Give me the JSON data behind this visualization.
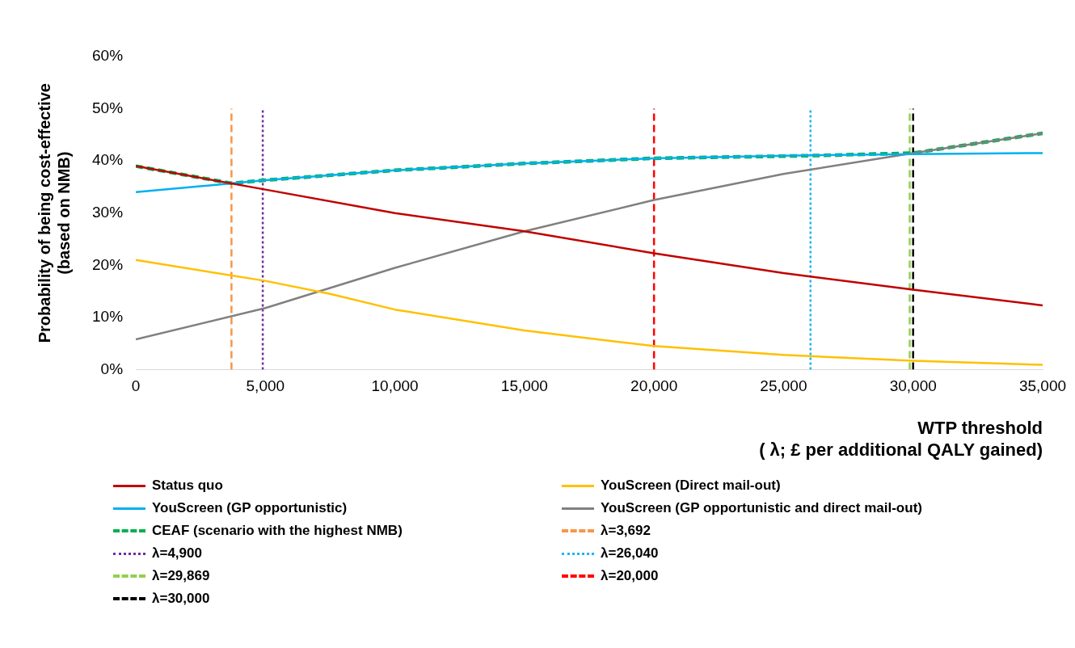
{
  "chart_data": {
    "type": "line",
    "xlabel": "WTP threshold\n( λ; £ per additional QALY gained)",
    "ylabel": "Probability of being cost-effective\n(based on NMB)",
    "xlim": [
      0,
      35000
    ],
    "xticks": [
      {
        "value": 0,
        "label": "0"
      },
      {
        "value": 5000,
        "label": "5,000"
      },
      {
        "value": 10000,
        "label": "10,000"
      },
      {
        "value": 15000,
        "label": "15,000"
      },
      {
        "value": 20000,
        "label": "20,000"
      },
      {
        "value": 25000,
        "label": "25,000"
      },
      {
        "value": 30000,
        "label": "30,000"
      },
      {
        "value": 35000,
        "label": "35,000"
      }
    ],
    "ylim": [
      0,
      60
    ],
    "yticks": [
      {
        "value": 0,
        "label": "0%"
      },
      {
        "value": 10,
        "label": "10%"
      },
      {
        "value": 20,
        "label": "20%"
      },
      {
        "value": 30,
        "label": "30%"
      },
      {
        "value": 40,
        "label": "40%"
      },
      {
        "value": 50,
        "label": "50%"
      },
      {
        "value": 60,
        "label": "60%"
      }
    ],
    "grid": false,
    "legend": "bottom",
    "marker": "none",
    "series": [
      {
        "name": "Status quo",
        "color": "#c00000",
        "line_style": "solid",
        "x": [
          0,
          5000,
          10000,
          15000,
          20000,
          25000,
          30000,
          35000
        ],
        "values": [
          39,
          34.5,
          30,
          26.5,
          22.3,
          18.5,
          15.3,
          12.3
        ]
      },
      {
        "name": "YouScreen (Direct mail-out)",
        "color": "#ffc000",
        "line_style": "solid",
        "x": [
          0,
          5000,
          7500,
          10000,
          15000,
          20000,
          25000,
          30000,
          35000
        ],
        "values": [
          21,
          17,
          14.5,
          11.5,
          7.5,
          4.5,
          2.8,
          1.7,
          0.9
        ]
      },
      {
        "name": "YouScreen (GP opportunistic)",
        "color": "#00b0f0",
        "line_style": "solid",
        "x": [
          0,
          5000,
          10000,
          15000,
          20000,
          25000,
          30000,
          35000
        ],
        "values": [
          34,
          36.3,
          38.2,
          39.5,
          40.5,
          41,
          41.3,
          41.5
        ]
      },
      {
        "name": "YouScreen (GP opportunistic and direct mail-out)",
        "color": "#808080",
        "line_style": "solid",
        "x": [
          0,
          5000,
          10000,
          15000,
          20000,
          25000,
          30000,
          35000
        ],
        "values": [
          5.8,
          11.8,
          19.5,
          26.5,
          32.5,
          37.5,
          41.5,
          45.3
        ]
      },
      {
        "name": "CEAF (scenario with the highest NMB)",
        "color": "#00b050",
        "line_style": "dashed",
        "x": [
          0,
          3692,
          5000,
          10000,
          15000,
          20000,
          26040,
          30000,
          35000
        ],
        "values": [
          39,
          35.7,
          36.3,
          38.2,
          39.5,
          40.5,
          41,
          41.5,
          45.3
        ]
      },
      {
        "name": "λ=3,692",
        "color": "#f79646",
        "line_style": "dashed",
        "x": [
          3692,
          3692
        ],
        "values": [
          0,
          50
        ]
      },
      {
        "name": "λ=4,900",
        "color": "#7030a0",
        "line_style": "dotted",
        "x": [
          4900,
          4900
        ],
        "values": [
          0,
          50
        ]
      },
      {
        "name": "λ=26,040",
        "color": "#1fb4f0",
        "line_style": "dotted",
        "x": [
          26040,
          26040
        ],
        "values": [
          0,
          50
        ]
      },
      {
        "name": "λ=29,869",
        "color": "#92d050",
        "line_style": "dashed",
        "x": [
          29869,
          29869
        ],
        "values": [
          0,
          50
        ]
      },
      {
        "name": "λ=20,000",
        "color": "#ff0000",
        "line_style": "dashed",
        "x": [
          20000,
          20000
        ],
        "values": [
          0,
          50
        ]
      },
      {
        "name": "λ=30,000",
        "color": "#000000",
        "line_style": "dashed",
        "x": [
          30000,
          30000
        ],
        "values": [
          0,
          50
        ]
      }
    ]
  }
}
